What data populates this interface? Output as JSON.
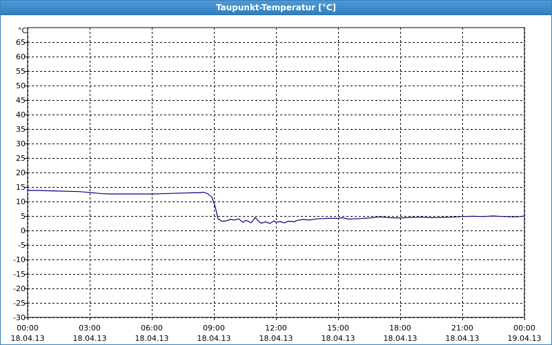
{
  "window": {
    "title": "Taupunkt-Temperatur [°C]"
  },
  "colors": {
    "titlebar": "#3d8cd0",
    "series": "#000080",
    "grid": "#000000"
  },
  "chart_data": {
    "type": "line",
    "title": "Taupunkt-Temperatur [°C]",
    "ylabel": "°C",
    "ylim": [
      -30,
      70
    ],
    "yticks": [
      -30,
      -25,
      -20,
      -15,
      -10,
      -5,
      0,
      5,
      10,
      15,
      20,
      25,
      30,
      35,
      40,
      45,
      50,
      55,
      60,
      65
    ],
    "xlim": [
      "18.04.13 00:00",
      "19.04.13 00:00"
    ],
    "xticks": [
      {
        "time": "00:00",
        "date": "18.04.13",
        "hour": 0
      },
      {
        "time": "03:00",
        "date": "18.04.13",
        "hour": 3
      },
      {
        "time": "06:00",
        "date": "18.04.13",
        "hour": 6
      },
      {
        "time": "09:00",
        "date": "18.04.13",
        "hour": 9
      },
      {
        "time": "12:00",
        "date": "18.04.13",
        "hour": 12
      },
      {
        "time": "15:00",
        "date": "18.04.13",
        "hour": 15
      },
      {
        "time": "18:00",
        "date": "18.04.13",
        "hour": 18
      },
      {
        "time": "21:00",
        "date": "18.04.13",
        "hour": 21
      },
      {
        "time": "00:00",
        "date": "19.04.13",
        "hour": 24
      }
    ],
    "grid": true,
    "series": [
      {
        "x": [
          0,
          0.5,
          1.0,
          1.5,
          2.0,
          2.5,
          3.0,
          3.3,
          3.6,
          4.0,
          4.5,
          5.0,
          5.5,
          6.0,
          6.5,
          7.0,
          7.5,
          8.0,
          8.3,
          8.5,
          8.7,
          8.9,
          9.05,
          9.2,
          9.4,
          9.6,
          9.8,
          10.0,
          10.2,
          10.4,
          10.55,
          10.8,
          11.0,
          11.15,
          11.3,
          11.5,
          11.7,
          11.9,
          12.0,
          12.2,
          12.4,
          12.6,
          12.85,
          13.0,
          13.3,
          13.6,
          14.0,
          14.5,
          15.0,
          15.2,
          15.5,
          16.0,
          16.5,
          17.0,
          17.5,
          18.0,
          18.5,
          19.0,
          19.5,
          20.0,
          20.5,
          21.0,
          21.5,
          22.0,
          22.5,
          23.0,
          23.5,
          23.8,
          24.0
        ],
        "y": [
          13.8,
          13.8,
          13.7,
          13.6,
          13.5,
          13.4,
          13.1,
          12.9,
          12.7,
          12.6,
          12.6,
          12.6,
          12.6,
          12.6,
          12.7,
          12.8,
          12.9,
          13.0,
          13.0,
          13.2,
          12.7,
          11.5,
          8.5,
          4.0,
          3.2,
          3.3,
          3.8,
          3.6,
          4.0,
          2.8,
          3.5,
          2.7,
          4.5,
          3.2,
          2.5,
          3.0,
          2.4,
          3.3,
          2.8,
          3.1,
          2.6,
          3.2,
          3.0,
          3.4,
          3.8,
          3.6,
          4.0,
          4.2,
          4.2,
          4.4,
          3.9,
          4.1,
          4.3,
          4.7,
          4.4,
          4.3,
          4.5,
          4.6,
          4.4,
          4.5,
          4.6,
          4.8,
          4.9,
          4.8,
          5.0,
          4.8,
          4.7,
          4.8,
          5.0
        ]
      }
    ]
  }
}
